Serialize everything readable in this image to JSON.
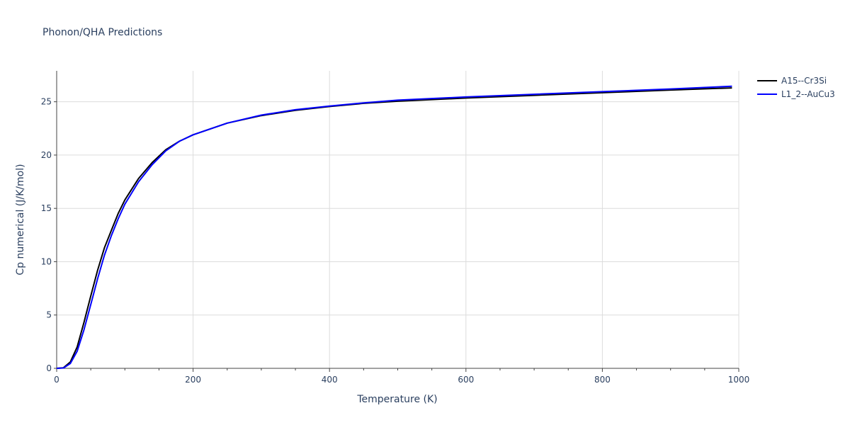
{
  "chart_data": {
    "type": "line",
    "title": "Phonon/QHA Predictions",
    "xlabel": "Temperature (K)",
    "ylabel": "Cp numerical (J/K/mol)",
    "xlim": [
      0,
      1000
    ],
    "ylim": [
      0,
      27.9
    ],
    "x_ticks": [
      "0",
      "200",
      "400",
      "600",
      "800",
      "1000"
    ],
    "y_ticks": [
      "0",
      "5",
      "10",
      "15",
      "20",
      "25"
    ],
    "grid": true,
    "legend_position": "top-right",
    "series": [
      {
        "name": "A15--Cr3Si",
        "color": "#000000",
        "x": [
          0,
          10,
          20,
          30,
          40,
          50,
          60,
          70,
          80,
          90,
          100,
          120,
          140,
          160,
          180,
          200,
          250,
          300,
          350,
          400,
          450,
          500,
          600,
          700,
          800,
          900,
          990
        ],
        "y": [
          0,
          0.05,
          0.6,
          2.0,
          4.3,
          6.8,
          9.2,
          11.3,
          12.9,
          14.5,
          15.8,
          17.8,
          19.3,
          20.5,
          21.3,
          21.9,
          23.0,
          23.7,
          24.2,
          24.55,
          24.85,
          25.05,
          25.35,
          25.6,
          25.85,
          26.1,
          26.3
        ]
      },
      {
        "name": "L1_2--AuCu3",
        "color": "#0000ff",
        "x": [
          0,
          10,
          20,
          30,
          40,
          50,
          60,
          70,
          80,
          90,
          100,
          120,
          140,
          160,
          180,
          200,
          250,
          300,
          350,
          400,
          450,
          500,
          600,
          700,
          800,
          900,
          990
        ],
        "y": [
          0,
          0.03,
          0.45,
          1.6,
          3.6,
          6.0,
          8.4,
          10.6,
          12.4,
          14.0,
          15.4,
          17.5,
          19.1,
          20.4,
          21.3,
          21.9,
          23.0,
          23.75,
          24.25,
          24.6,
          24.9,
          25.15,
          25.45,
          25.7,
          25.95,
          26.2,
          26.45
        ]
      }
    ]
  }
}
